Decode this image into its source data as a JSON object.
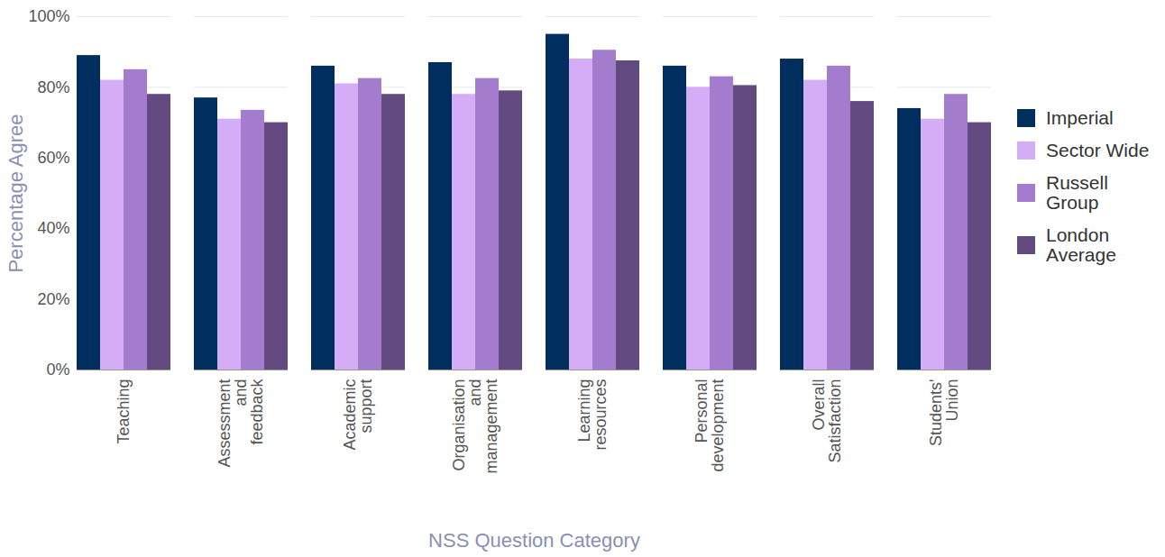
{
  "chart_data": {
    "type": "bar",
    "xlabel": "NSS Question Category",
    "ylabel": "Percentage Agree",
    "categories": [
      "Teaching",
      "Assessment and feedback",
      "Academic support",
      "Organisation and management",
      "Learning resources",
      "Personal development",
      "Overall Satisfaction",
      "Students' Union"
    ],
    "series": [
      {
        "name": "Imperial",
        "color": "#002f5f",
        "values": [
          89,
          77,
          86,
          87,
          95,
          86,
          88,
          74
        ]
      },
      {
        "name": "Sector Wide",
        "color": "#d5adf6",
        "values": [
          82,
          71,
          81,
          78,
          88,
          80,
          82,
          71
        ]
      },
      {
        "name": "Russell Group",
        "color": "#a47ccd",
        "values": [
          85,
          73.5,
          82.5,
          82.5,
          90.5,
          83,
          86,
          78
        ]
      },
      {
        "name": "London Average",
        "color": "#634a80",
        "values": [
          78,
          70,
          78,
          79,
          87.5,
          80.5,
          76,
          70
        ]
      }
    ],
    "ylim": [
      0,
      100
    ],
    "yticks": [
      {
        "value": 0,
        "label": "0%"
      },
      {
        "value": 20,
        "label": "20%"
      },
      {
        "value": 40,
        "label": "40%"
      },
      {
        "value": 60,
        "label": "60%"
      },
      {
        "value": 80,
        "label": "80%"
      },
      {
        "value": 100,
        "label": "100%"
      }
    ],
    "grid": true,
    "legend": "right"
  }
}
